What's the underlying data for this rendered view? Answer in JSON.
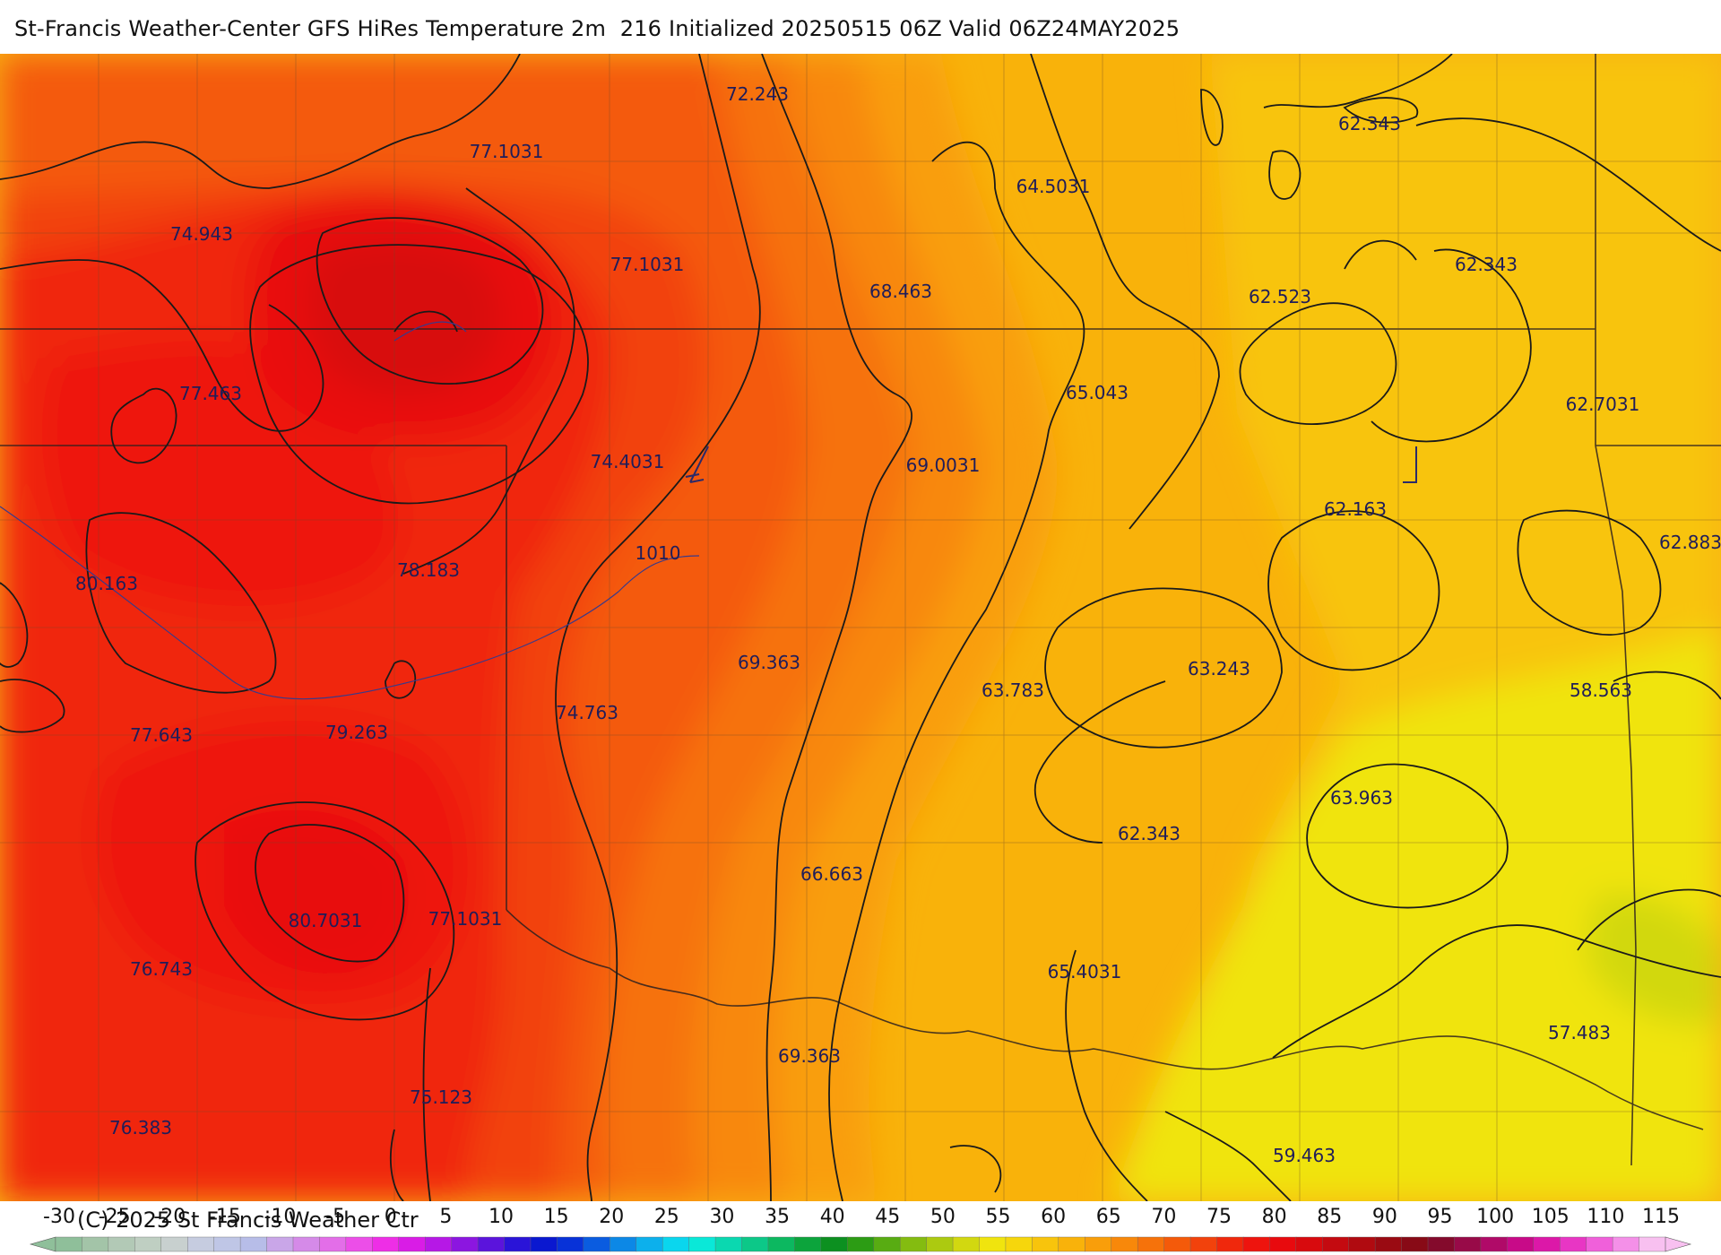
{
  "title": "St-Francis Weather-Center GFS HiRes Temperature 2m  216 Initialized 20250515 06Z Valid 06Z24MAY2025",
  "copyright": "(C) 2025 St Francis Weather Ctr",
  "map": {
    "value_labels": [
      {
        "id": "v1",
        "text": "72.243"
      },
      {
        "id": "v2",
        "text": "77.1031"
      },
      {
        "id": "v3",
        "text": "74.943"
      },
      {
        "id": "v4",
        "text": "77.1031"
      },
      {
        "id": "v5",
        "text": "64.5031"
      },
      {
        "id": "v6",
        "text": "62.343"
      },
      {
        "id": "v7",
        "text": "62.343"
      },
      {
        "id": "v8",
        "text": "68.463"
      },
      {
        "id": "v9",
        "text": "62.523"
      },
      {
        "id": "v10",
        "text": "77.463"
      },
      {
        "id": "v11",
        "text": "65.043"
      },
      {
        "id": "v12",
        "text": "62.7031"
      },
      {
        "id": "v13",
        "text": "74.4031"
      },
      {
        "id": "v14",
        "text": "69.0031"
      },
      {
        "id": "v15",
        "text": "62.163"
      },
      {
        "id": "v16",
        "text": "62.883"
      },
      {
        "id": "v17",
        "text": "80.163"
      },
      {
        "id": "v18",
        "text": "78.183"
      },
      {
        "id": "v19",
        "text": "1010"
      },
      {
        "id": "v20",
        "text": "69.363"
      },
      {
        "id": "v21",
        "text": "63.783"
      },
      {
        "id": "v22",
        "text": "63.243"
      },
      {
        "id": "v23",
        "text": "58.563"
      },
      {
        "id": "v24",
        "text": "77.643"
      },
      {
        "id": "v25",
        "text": "79.263"
      },
      {
        "id": "v26",
        "text": "74.763"
      },
      {
        "id": "v27",
        "text": "63.963"
      },
      {
        "id": "v28",
        "text": "62.343"
      },
      {
        "id": "v29",
        "text": "66.663"
      },
      {
        "id": "v30",
        "text": "80.7031"
      },
      {
        "id": "v31",
        "text": "77.1031"
      },
      {
        "id": "v32",
        "text": "76.743"
      },
      {
        "id": "v33",
        "text": "65.4031"
      },
      {
        "id": "v34",
        "text": "57.483"
      },
      {
        "id": "v35",
        "text": "69.363"
      },
      {
        "id": "v36",
        "text": "75.123"
      },
      {
        "id": "v37",
        "text": "76.383"
      },
      {
        "id": "v38",
        "text": "59.463"
      }
    ]
  },
  "color_scale": {
    "ticks": [
      "-30",
      "-25",
      "-20",
      "-15",
      "-10",
      "-5",
      "0",
      "5",
      "10",
      "15",
      "20",
      "25",
      "30",
      "35",
      "40",
      "45",
      "50",
      "55",
      "60",
      "65",
      "70",
      "75",
      "80",
      "85",
      "90",
      "95",
      "100",
      "105",
      "110",
      "115"
    ],
    "colors": [
      "#8fbf9a",
      "#a3c4a8",
      "#b2c9b6",
      "#bfcfc2",
      "#c8d0cf",
      "#c6cce0",
      "#bfc6e6",
      "#b7bde8",
      "#c9a6e8",
      "#d58ae8",
      "#e36ee8",
      "#ec4ee8",
      "#ee2ee6",
      "#d91ce6",
      "#b618e6",
      "#8c16e0",
      "#5b14dc",
      "#2a14d8",
      "#0a18d0",
      "#0832d8",
      "#0a5ce0",
      "#0c88e6",
      "#0cb0ec",
      "#0ad6ee",
      "#0ae8d8",
      "#0ad8b0",
      "#0cc888",
      "#0cb860",
      "#0ca43c",
      "#0c9020",
      "#2c9c14",
      "#58ac12",
      "#84bc10",
      "#acca10",
      "#d2d810",
      "#f0e40e",
      "#f6d60c",
      "#f8c40c",
      "#f9b20a",
      "#f99e0a",
      "#f8880a",
      "#f6720a",
      "#f45a0a",
      "#f2420c",
      "#f0280c",
      "#ee140e",
      "#e80a0e",
      "#d80a0e",
      "#c40a10",
      "#b00a10",
      "#9a0a12",
      "#880a16",
      "#840a2c",
      "#980a48",
      "#b00a68",
      "#c80a88",
      "#dc18a8",
      "#e836c4",
      "#f060da",
      "#f490e8",
      "#f8c0f0"
    ]
  }
}
